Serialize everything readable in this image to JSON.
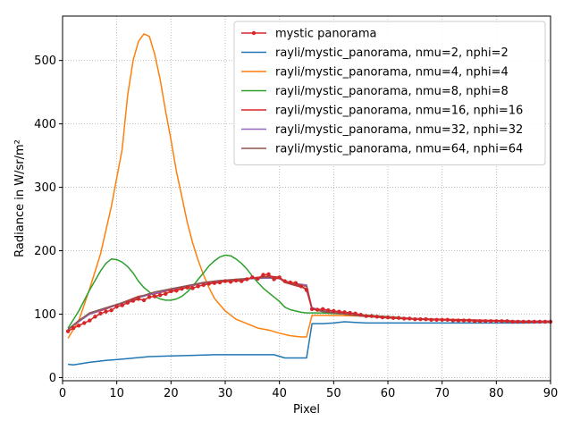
{
  "chart_data": {
    "type": "line",
    "xlabel": "Pixel",
    "ylabel": "Radiance in W/sr/m²",
    "xlim": [
      0,
      90
    ],
    "ylim": [
      -5,
      570
    ],
    "xticks": [
      0,
      10,
      20,
      30,
      40,
      50,
      60,
      70,
      80,
      90
    ],
    "yticks": [
      0,
      100,
      200,
      300,
      400,
      500
    ],
    "grid": true,
    "legend_position": "top-right",
    "series": [
      {
        "name": "rayli/mystic_panorama, nmu=2, nphi=2",
        "color": "#1f77b4",
        "x": [
          1,
          2,
          5,
          8,
          12,
          16,
          20,
          24,
          28,
          32,
          36,
          39,
          41,
          43,
          45,
          46,
          48,
          50,
          52,
          54,
          56,
          60,
          65,
          70,
          75,
          80,
          85,
          90
        ],
        "y": [
          21,
          20,
          24,
          27,
          30,
          33,
          34,
          35,
          36,
          36,
          36,
          36,
          31,
          31,
          31,
          85,
          85,
          86,
          88,
          87,
          86,
          86,
          86,
          86,
          86,
          86,
          86,
          87
        ]
      },
      {
        "name": "rayli/mystic_panorama, nmu=4, nphi=4",
        "color": "#ff7f0e",
        "x": [
          1,
          3,
          5,
          7,
          9,
          11,
          12,
          13,
          14,
          15,
          16,
          17,
          18,
          19,
          20,
          21,
          22,
          23,
          24,
          25,
          26,
          27,
          28,
          29,
          30,
          32,
          34,
          36,
          38,
          40,
          42,
          44,
          45,
          46,
          48,
          50,
          55,
          60,
          65,
          70,
          75,
          80,
          85,
          90
        ],
        "y": [
          62,
          90,
          140,
          195,
          270,
          360,
          445,
          500,
          530,
          542,
          538,
          510,
          470,
          420,
          375,
          325,
          285,
          245,
          212,
          185,
          162,
          142,
          125,
          115,
          105,
          92,
          85,
          78,
          75,
          70,
          66,
          64,
          64,
          98,
          98,
          98,
          97,
          95,
          93,
          91,
          90,
          89,
          88,
          88
        ]
      },
      {
        "name": "rayli/mystic_panorama, nmu=8, nphi=8",
        "color": "#2ca02c",
        "x": [
          1,
          3,
          5,
          7,
          8,
          9,
          10,
          11,
          12,
          13,
          14,
          15,
          16,
          17,
          18,
          19,
          20,
          21,
          22,
          23,
          24,
          25,
          26,
          27,
          28,
          29,
          30,
          31,
          32,
          33,
          34,
          35,
          36,
          37,
          38,
          39,
          40,
          41,
          42,
          44,
          45,
          46,
          48,
          50,
          55,
          60,
          65,
          70,
          75,
          80,
          85,
          90
        ],
        "y": [
          78,
          105,
          138,
          168,
          180,
          187,
          186,
          182,
          175,
          165,
          152,
          142,
          135,
          128,
          124,
          122,
          122,
          124,
          128,
          135,
          144,
          155,
          165,
          176,
          184,
          190,
          193,
          192,
          187,
          180,
          171,
          160,
          150,
          141,
          134,
          127,
          120,
          111,
          107,
          103,
          102,
          102,
          102,
          101,
          99,
          96,
          93,
          91,
          90,
          89,
          88,
          88
        ]
      },
      {
        "name": "rayli/mystic_panorama, nmu=16, nphi=16",
        "color": "#d62728",
        "x": [
          1,
          3,
          5,
          8,
          11,
          14,
          17,
          20,
          23,
          26,
          29,
          32,
          35,
          38,
          40,
          41,
          43,
          44,
          45,
          46,
          48,
          50,
          55,
          60,
          65,
          70,
          75,
          80,
          85,
          90
        ],
        "y": [
          75,
          90,
          100,
          108,
          118,
          128,
          132,
          138,
          143,
          149,
          151,
          153,
          157,
          160,
          158,
          150,
          145,
          143,
          140,
          108,
          106,
          104,
          98,
          95,
          93,
          92,
          91,
          90,
          89,
          89
        ]
      },
      {
        "name": "rayli/mystic_panorama, nmu=32, nphi=32",
        "color": "#9467bd",
        "x": [
          1,
          3,
          5,
          8,
          11,
          14,
          17,
          20,
          23,
          26,
          29,
          32,
          35,
          38,
          40,
          41,
          43,
          45,
          46,
          48,
          50,
          55,
          60,
          65,
          70,
          75,
          80,
          85,
          90
        ],
        "y": [
          76,
          88,
          100,
          109,
          117,
          126,
          133,
          139,
          144,
          149,
          152,
          154,
          156,
          157,
          156,
          151,
          148,
          146,
          110,
          106,
          103,
          98,
          95,
          93,
          91,
          90,
          89,
          89,
          89
        ]
      },
      {
        "name": "rayli/mystic_panorama, nmu=64, nphi=64",
        "color": "#8c564b",
        "x": [
          1,
          3,
          5,
          8,
          11,
          14,
          17,
          20,
          23,
          26,
          29,
          32,
          35,
          38,
          40,
          41,
          43,
          45,
          46,
          48,
          50,
          55,
          60,
          65,
          70,
          75,
          80,
          85,
          90
        ],
        "y": [
          76,
          90,
          102,
          110,
          118,
          127,
          135,
          140,
          145,
          150,
          153,
          155,
          157,
          158,
          157,
          150,
          146,
          144,
          108,
          104,
          102,
          97,
          94,
          92,
          91,
          90,
          89,
          88,
          88
        ]
      },
      {
        "name": "mystic panorama",
        "color": "#d62728",
        "markers": true,
        "x": [
          1,
          2,
          3,
          4,
          5,
          6,
          7,
          8,
          9,
          10,
          11,
          12,
          13,
          14,
          15,
          16,
          17,
          18,
          19,
          20,
          21,
          22,
          23,
          24,
          25,
          26,
          27,
          28,
          29,
          30,
          31,
          32,
          33,
          34,
          35,
          36,
          37,
          38,
          39,
          40,
          41,
          42,
          43,
          44,
          45,
          46,
          47,
          48,
          49,
          50,
          51,
          52,
          53,
          54,
          55,
          56,
          57,
          58,
          59,
          60,
          61,
          62,
          63,
          64,
          65,
          66,
          67,
          68,
          69,
          70,
          71,
          72,
          73,
          74,
          75,
          76,
          77,
          78,
          79,
          80,
          81,
          82,
          83,
          84,
          85,
          86,
          87,
          88,
          89,
          90
        ],
        "y": [
          73,
          78,
          82,
          86,
          90,
          96,
          101,
          104,
          106,
          112,
          114,
          118,
          121,
          124,
          122,
          127,
          128,
          130,
          132,
          136,
          137,
          140,
          142,
          141,
          144,
          146,
          148,
          149,
          150,
          152,
          151,
          153,
          152,
          155,
          158,
          156,
          162,
          163,
          155,
          158,
          152,
          150,
          149,
          144,
          138,
          108,
          107,
          108,
          106,
          105,
          104,
          103,
          102,
          101,
          99,
          97,
          97,
          96,
          95,
          95,
          94,
          94,
          93,
          93,
          92,
          92,
          92,
          91,
          91,
          91,
          91,
          90,
          90,
          90,
          90,
          89,
          89,
          89,
          89,
          89,
          89,
          89,
          88,
          88,
          88,
          88,
          88,
          88,
          88,
          88
        ]
      }
    ],
    "legend_order": [
      6,
      0,
      1,
      2,
      3,
      4,
      5
    ]
  }
}
